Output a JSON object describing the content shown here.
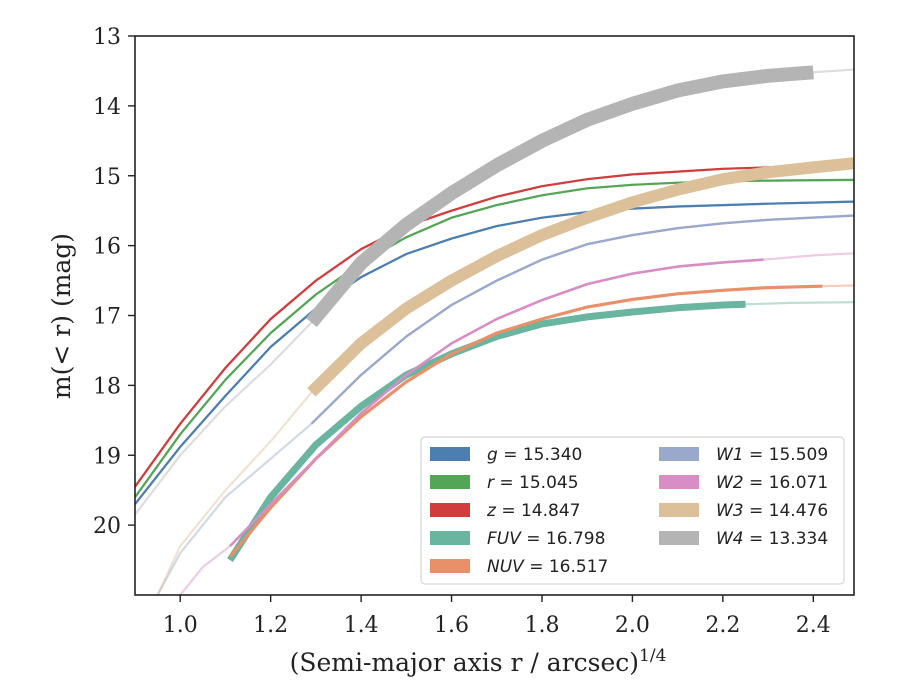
{
  "chart_data": {
    "type": "line",
    "xlabel": "(Semi-major axis r / arcsec)",
    "xlabel_sup": "1/4",
    "ylabel": "m(< r) (mag)",
    "xlim": [
      0.9,
      2.49
    ],
    "ylim": [
      21.0,
      13.0
    ],
    "y_inverted": true,
    "x_ticks": [
      "1.0",
      "1.2",
      "1.4",
      "1.6",
      "1.8",
      "2.0",
      "2.2",
      "2.4"
    ],
    "y_ticks": [
      "13",
      "14",
      "15",
      "16",
      "17",
      "18",
      "19",
      "20"
    ],
    "legend_position": "lower-right",
    "series": [
      {
        "name": "g",
        "label": "= 15.340",
        "color": "#4c7fb0",
        "bold_range": [
          0.9,
          2.49
        ],
        "bold_width": 2.2,
        "points": [
          [
            0.9,
            19.7
          ],
          [
            1.0,
            18.88
          ],
          [
            1.1,
            18.15
          ],
          [
            1.2,
            17.45
          ],
          [
            1.3,
            16.9
          ],
          [
            1.4,
            16.45
          ],
          [
            1.5,
            16.12
          ],
          [
            1.6,
            15.9
          ],
          [
            1.7,
            15.72
          ],
          [
            1.8,
            15.6
          ],
          [
            1.9,
            15.52
          ],
          [
            2.0,
            15.47
          ],
          [
            2.1,
            15.44
          ],
          [
            2.2,
            15.42
          ],
          [
            2.3,
            15.4
          ],
          [
            2.49,
            15.37
          ]
        ]
      },
      {
        "name": "r",
        "label": "= 15.045",
        "color": "#55a557",
        "bold_range": [
          0.9,
          2.49
        ],
        "bold_width": 2.2,
        "points": [
          [
            0.9,
            19.6
          ],
          [
            1.0,
            18.7
          ],
          [
            1.1,
            17.92
          ],
          [
            1.2,
            17.25
          ],
          [
            1.3,
            16.7
          ],
          [
            1.4,
            16.25
          ],
          [
            1.5,
            15.88
          ],
          [
            1.6,
            15.6
          ],
          [
            1.7,
            15.42
          ],
          [
            1.8,
            15.28
          ],
          [
            1.9,
            15.18
          ],
          [
            2.0,
            15.13
          ],
          [
            2.1,
            15.1
          ],
          [
            2.2,
            15.08
          ],
          [
            2.3,
            15.07
          ],
          [
            2.49,
            15.06
          ]
        ]
      },
      {
        "name": "z",
        "label": "= 14.847",
        "color": "#d13c3c",
        "bold_range": [
          0.9,
          2.49
        ],
        "bold_width": 2.2,
        "points": [
          [
            0.9,
            19.45
          ],
          [
            1.0,
            18.55
          ],
          [
            1.1,
            17.75
          ],
          [
            1.2,
            17.05
          ],
          [
            1.3,
            16.5
          ],
          [
            1.4,
            16.05
          ],
          [
            1.5,
            15.72
          ],
          [
            1.6,
            15.5
          ],
          [
            1.7,
            15.3
          ],
          [
            1.8,
            15.15
          ],
          [
            1.9,
            15.05
          ],
          [
            2.0,
            14.98
          ],
          [
            2.1,
            14.94
          ],
          [
            2.2,
            14.9
          ],
          [
            2.3,
            14.88
          ],
          [
            2.49,
            14.86
          ]
        ]
      },
      {
        "name": "FUV",
        "label": "= 16.798",
        "color": "#6ab5a0",
        "bold_range": [
          1.11,
          2.25
        ],
        "bold_width": 7,
        "points": [
          [
            1.11,
            20.5
          ],
          [
            1.2,
            19.6
          ],
          [
            1.3,
            18.85
          ],
          [
            1.4,
            18.3
          ],
          [
            1.5,
            17.85
          ],
          [
            1.6,
            17.55
          ],
          [
            1.7,
            17.3
          ],
          [
            1.8,
            17.12
          ],
          [
            1.9,
            17.02
          ],
          [
            2.0,
            16.95
          ],
          [
            2.1,
            16.89
          ],
          [
            2.2,
            16.85
          ],
          [
            2.25,
            16.84
          ],
          [
            2.35,
            16.82
          ],
          [
            2.49,
            16.81
          ]
        ]
      },
      {
        "name": "NUV",
        "label": "= 16.517",
        "color": "#e8906a",
        "bold_range": [
          1.11,
          2.42
        ],
        "bold_width": 3.2,
        "points": [
          [
            1.11,
            20.45
          ],
          [
            1.2,
            19.75
          ],
          [
            1.3,
            19.05
          ],
          [
            1.4,
            18.45
          ],
          [
            1.5,
            17.95
          ],
          [
            1.6,
            17.55
          ],
          [
            1.7,
            17.25
          ],
          [
            1.8,
            17.05
          ],
          [
            1.9,
            16.88
          ],
          [
            2.0,
            16.77
          ],
          [
            2.1,
            16.69
          ],
          [
            2.2,
            16.64
          ],
          [
            2.3,
            16.6
          ],
          [
            2.42,
            16.58
          ],
          [
            2.49,
            16.57
          ]
        ]
      },
      {
        "name": "W1",
        "label": "= 15.509",
        "color": "#9aa8cc",
        "bold_range": [
          1.29,
          2.49
        ],
        "bold_width": 2.4,
        "points": [
          [
            0.95,
            21.0
          ],
          [
            1.0,
            20.4
          ],
          [
            1.1,
            19.6
          ],
          [
            1.2,
            19.05
          ],
          [
            1.29,
            18.55
          ],
          [
            1.4,
            17.85
          ],
          [
            1.5,
            17.3
          ],
          [
            1.6,
            16.85
          ],
          [
            1.7,
            16.5
          ],
          [
            1.8,
            16.2
          ],
          [
            1.9,
            15.98
          ],
          [
            2.0,
            15.85
          ],
          [
            2.1,
            15.75
          ],
          [
            2.2,
            15.68
          ],
          [
            2.3,
            15.63
          ],
          [
            2.49,
            15.57
          ]
        ]
      },
      {
        "name": "W2",
        "label": "= 16.071",
        "color": "#d88ec4",
        "bold_range": [
          1.11,
          2.29
        ],
        "bold_width": 2.6,
        "points": [
          [
            1.0,
            21.0
          ],
          [
            1.05,
            20.6
          ],
          [
            1.11,
            20.3
          ],
          [
            1.2,
            19.7
          ],
          [
            1.3,
            19.05
          ],
          [
            1.4,
            18.4
          ],
          [
            1.5,
            17.85
          ],
          [
            1.6,
            17.4
          ],
          [
            1.7,
            17.05
          ],
          [
            1.8,
            16.78
          ],
          [
            1.9,
            16.55
          ],
          [
            2.0,
            16.4
          ],
          [
            2.1,
            16.3
          ],
          [
            2.2,
            16.24
          ],
          [
            2.29,
            16.2
          ],
          [
            2.4,
            16.14
          ],
          [
            2.49,
            16.11
          ]
        ]
      },
      {
        "name": "W3",
        "label": "= 14.476",
        "color": "#dcc09a",
        "bold_range": [
          1.29,
          2.49
        ],
        "bold_width": 12,
        "points": [
          [
            0.95,
            21.0
          ],
          [
            1.0,
            20.3
          ],
          [
            1.1,
            19.5
          ],
          [
            1.2,
            18.8
          ],
          [
            1.29,
            18.1
          ],
          [
            1.4,
            17.4
          ],
          [
            1.5,
            16.9
          ],
          [
            1.6,
            16.5
          ],
          [
            1.7,
            16.15
          ],
          [
            1.8,
            15.85
          ],
          [
            1.9,
            15.6
          ],
          [
            2.0,
            15.38
          ],
          [
            2.1,
            15.2
          ],
          [
            2.2,
            15.05
          ],
          [
            2.3,
            14.95
          ],
          [
            2.4,
            14.88
          ],
          [
            2.49,
            14.82
          ]
        ]
      },
      {
        "name": "W4",
        "label": "= 13.334",
        "color": "#b4b4b4",
        "bold_range": [
          1.29,
          2.4
        ],
        "bold_width": 14,
        "points": [
          [
            0.9,
            19.85
          ],
          [
            1.0,
            19.0
          ],
          [
            1.1,
            18.3
          ],
          [
            1.2,
            17.7
          ],
          [
            1.29,
            17.1
          ],
          [
            1.4,
            16.25
          ],
          [
            1.5,
            15.7
          ],
          [
            1.6,
            15.25
          ],
          [
            1.7,
            14.85
          ],
          [
            1.8,
            14.5
          ],
          [
            1.9,
            14.2
          ],
          [
            2.0,
            13.97
          ],
          [
            2.1,
            13.78
          ],
          [
            2.2,
            13.65
          ],
          [
            2.3,
            13.57
          ],
          [
            2.4,
            13.52
          ],
          [
            2.49,
            13.48
          ]
        ]
      }
    ]
  }
}
